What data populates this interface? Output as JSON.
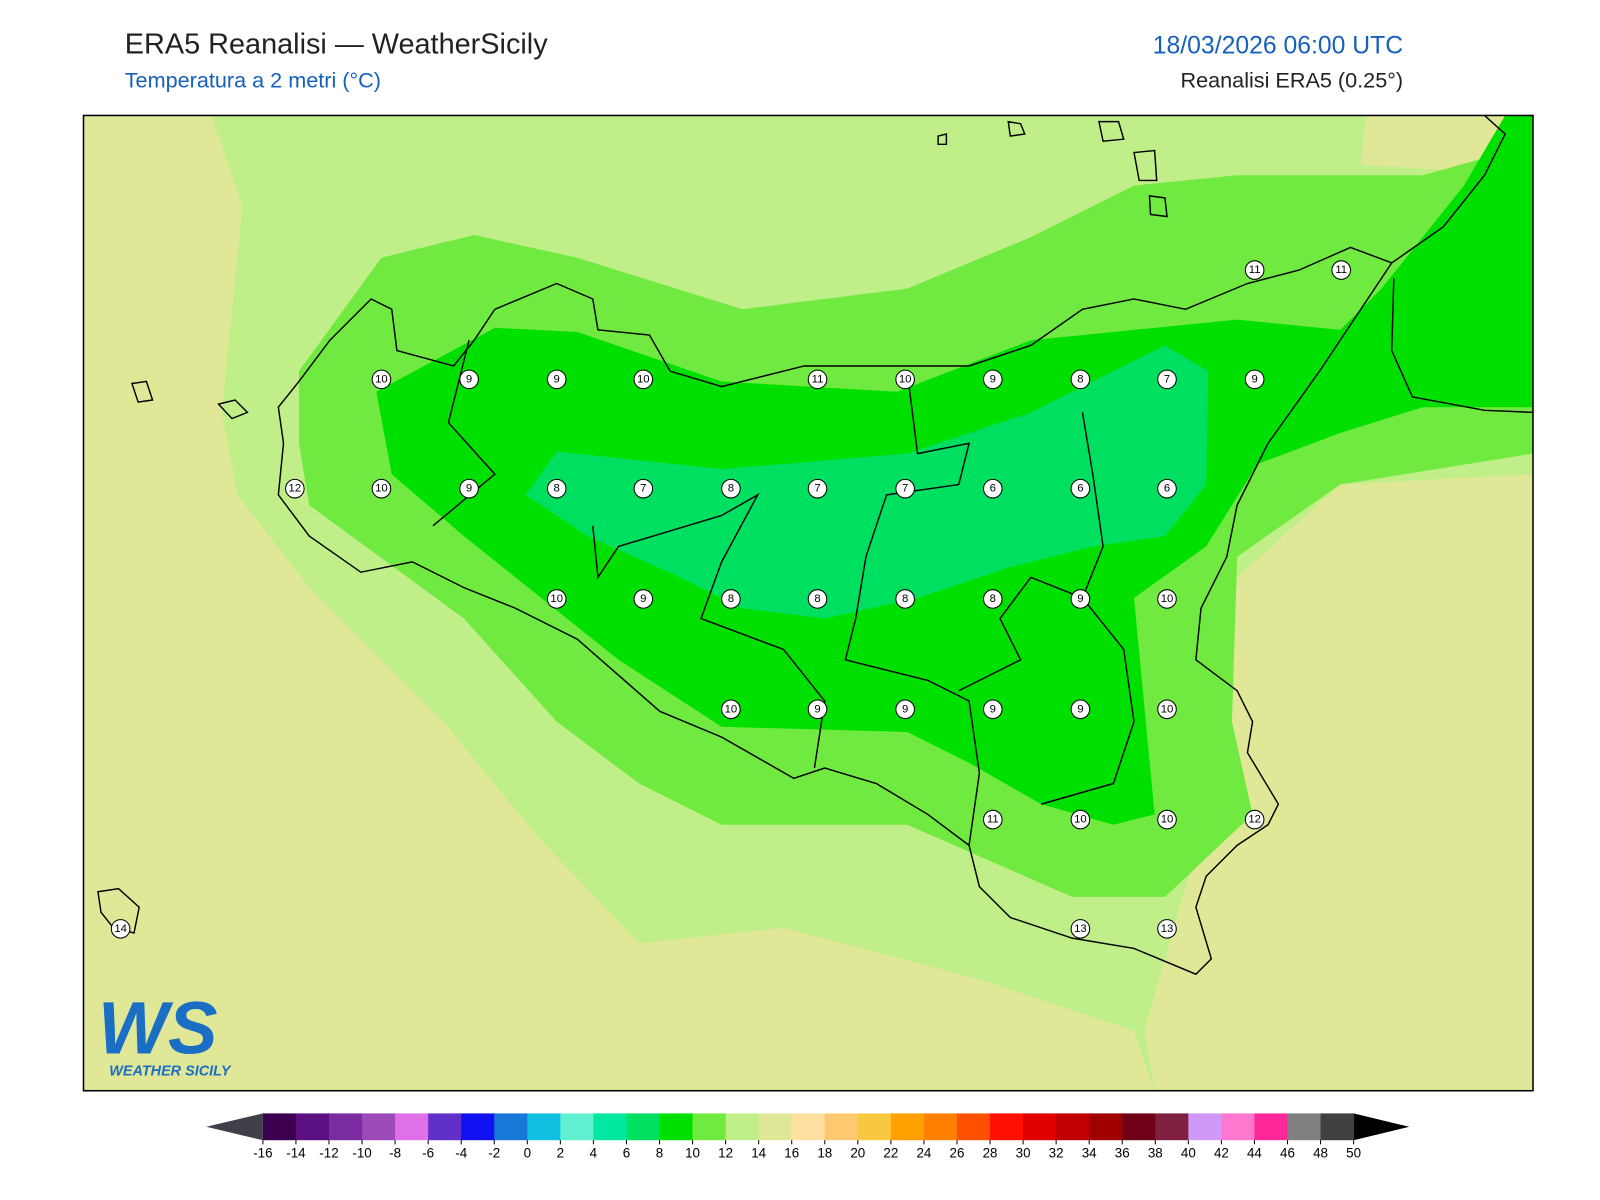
{
  "header": {
    "title": "ERA5 Reanalisi — WeatherSicily",
    "subtitle": "Temperatura a 2 metri (°C)",
    "datetime": "18/03/2026 06:00 UTC",
    "source": "Reanalisi ERA5 (0.25°)"
  },
  "stations": [
    10,
    9,
    9,
    10,
    11,
    10,
    9,
    8,
    7,
    9,
    11,
    11,
    12,
    10,
    9,
    8,
    7,
    8,
    7,
    7,
    6,
    6,
    6,
    10,
    9,
    8,
    8,
    8,
    8,
    9,
    10,
    10,
    9,
    9,
    9,
    9,
    10,
    11,
    10,
    10,
    12,
    14,
    13,
    13
  ],
  "logo": {
    "mark": "WS",
    "name": "WEATHER SICILY"
  },
  "colorbar": {
    "ticks": [
      -16,
      -14,
      -12,
      -10,
      -8,
      -6,
      -4,
      -2,
      0,
      2,
      4,
      6,
      8,
      10,
      12,
      14,
      16,
      18,
      20,
      22,
      24,
      26,
      28,
      30,
      32,
      34,
      36,
      38,
      40,
      42,
      44,
      46,
      48,
      50
    ],
    "colors": [
      "#3d0050",
      "#5a1080",
      "#7b2ca0",
      "#9b4ab8",
      "#e070e8",
      "#6030c8",
      "#1010f0",
      "#1878d8",
      "#10c0e0",
      "#60f0d0",
      "#00e8a0",
      "#00e060",
      "#00e000",
      "#70ea40",
      "#c0ee88",
      "#e0e898",
      "#ffe0a0",
      "#fcc870",
      "#f8c840",
      "#ffa000",
      "#ff8000",
      "#ff5000",
      "#ff1000",
      "#e00000",
      "#c00000",
      "#a00000",
      "#700018",
      "#802040",
      "#d098f8",
      "#ff78d0",
      "#ff2898",
      "#808080",
      "#404040"
    ],
    "extend_colors": [
      "#404048",
      "#000000"
    ]
  }
}
